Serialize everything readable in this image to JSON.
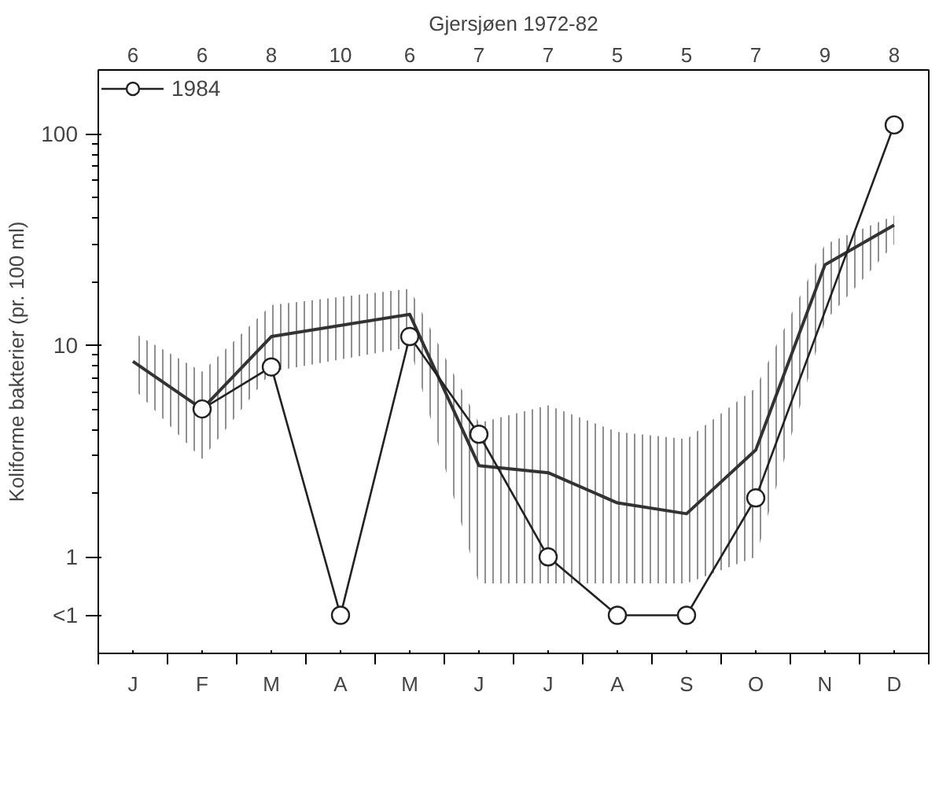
{
  "chart_data": {
    "type": "line",
    "title": "Gjersjøen 1972-82",
    "ylabel": "Koliforme bakterier (pr. 100 ml)",
    "log": true,
    "grid": false,
    "legend": "top left",
    "categories": [
      "J",
      "F",
      "M",
      "A",
      "M",
      "J",
      "J",
      "A",
      "S",
      "O",
      "N",
      "D"
    ],
    "annotations": [
      "6",
      "6",
      "8",
      "10",
      "6",
      "7",
      "7",
      "5",
      "5",
      "7",
      "9",
      "8"
    ],
    "ylim": [
      0.35,
      200
    ],
    "yticks": [
      {
        "value": 0.53,
        "label": "<1"
      },
      1,
      10,
      100
    ],
    "series": [
      {
        "color": "#333333",
        "values": [
          8.4,
          5.0,
          11,
          null,
          14,
          2.7,
          2.5,
          1.8,
          1.6,
          3.2,
          24,
          37
        ],
        "lower": [
          6.3,
          2.9,
          7.5,
          null,
          9.8,
          0.75,
          0.75,
          0.75,
          0.75,
          1.0,
          13,
          30
        ],
        "upper": [
          11.5,
          7.5,
          15.5,
          null,
          18.5,
          4.3,
          5.2,
          3.9,
          3.6,
          6.3,
          30,
          41
        ]
      },
      {
        "name": "1984",
        "color": "#222222",
        "marker": "circle",
        "values": [
          null,
          5.0,
          7.9,
          0.53,
          11,
          3.8,
          1.0,
          0.53,
          0.53,
          1.9,
          null,
          110
        ]
      }
    ]
  }
}
